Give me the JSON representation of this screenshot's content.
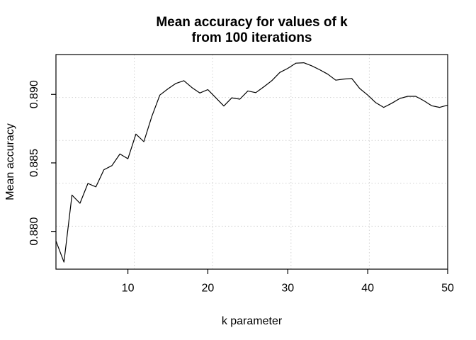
{
  "figure": {
    "background": "#ffffff"
  },
  "chart_data": {
    "type": "line",
    "title_lines": [
      "Mean accuracy for values of k",
      "from 100 iterations"
    ],
    "xlabel": "k parameter",
    "ylabel": "Mean accuracy",
    "x": [
      1,
      2,
      3,
      4,
      5,
      6,
      7,
      8,
      9,
      10,
      11,
      12,
      13,
      14,
      15,
      16,
      17,
      18,
      19,
      20,
      21,
      22,
      23,
      24,
      25,
      26,
      27,
      28,
      29,
      30,
      31,
      32,
      33,
      34,
      35,
      36,
      37,
      38,
      39,
      40,
      41,
      42,
      43,
      44,
      45,
      46,
      47,
      48,
      49,
      50
    ],
    "y": [
      0.8793,
      0.87775,
      0.88265,
      0.88205,
      0.8835,
      0.88325,
      0.8845,
      0.8848,
      0.88565,
      0.8853,
      0.8871,
      0.88655,
      0.8884,
      0.88995,
      0.8904,
      0.8908,
      0.891,
      0.8905,
      0.8901,
      0.89035,
      0.88975,
      0.88915,
      0.88975,
      0.88965,
      0.89025,
      0.89013,
      0.89055,
      0.891,
      0.8916,
      0.8919,
      0.89228,
      0.89231,
      0.89209,
      0.8918,
      0.89148,
      0.89104,
      0.89112,
      0.89116,
      0.89043,
      0.88995,
      0.8894,
      0.88905,
      0.88935,
      0.8897,
      0.88986,
      0.88986,
      0.88955,
      0.88917,
      0.88905,
      0.88922
    ],
    "xlim": [
      1,
      50
    ],
    "ylim": [
      0.87724,
      0.89291
    ],
    "x_ticks": [
      10,
      20,
      30,
      40,
      50
    ],
    "x_tick_labels": [
      "10",
      "20",
      "30",
      "40",
      "50"
    ],
    "y_ticks": [
      0.88,
      0.885,
      0.89
    ],
    "y_tick_labels": [
      "0.880",
      "0.885",
      "0.890"
    ],
    "grid": {
      "nx": 5,
      "ny": 5,
      "line_style": "dotted",
      "color": "#d3d3d3"
    },
    "line_color": "#000000",
    "axis_color": "#000000",
    "legend_position": "none"
  }
}
